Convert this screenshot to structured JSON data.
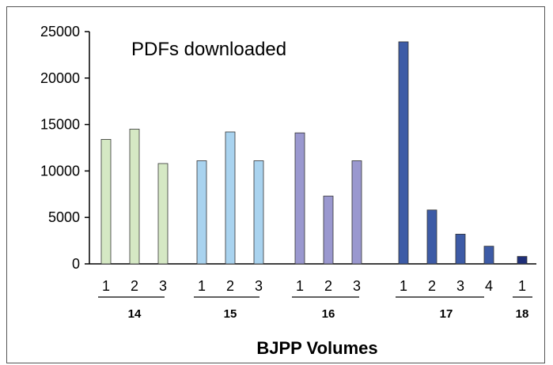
{
  "chart_data": {
    "type": "bar",
    "title": "PDFs downloaded",
    "xlabel": "BJPP Volumes",
    "ylabel": "",
    "ylim": [
      0,
      25000
    ],
    "y_ticks": [
      "0",
      "5000",
      "10000",
      "15000",
      "20000",
      "25000"
    ],
    "grid": false,
    "legend": "none",
    "groups": [
      {
        "volume": "14",
        "color": "#d5e8c4",
        "issues": [
          "1",
          "2",
          "3"
        ],
        "values": [
          13400,
          14500,
          10800
        ]
      },
      {
        "volume": "15",
        "color": "#a9d3ef",
        "issues": [
          "1",
          "2",
          "3"
        ],
        "values": [
          11100,
          14200,
          11100
        ]
      },
      {
        "volume": "16",
        "color": "#9a98cf",
        "issues": [
          "1",
          "2",
          "3"
        ],
        "values": [
          14100,
          7300,
          11100
        ]
      },
      {
        "volume": "17",
        "color": "#3d5ba6",
        "issues": [
          "1",
          "2",
          "3",
          "4"
        ],
        "values": [
          23900,
          5800,
          3200,
          1900
        ]
      },
      {
        "volume": "18",
        "color": "#1f2f78",
        "issues": [
          "1"
        ],
        "values": [
          800
        ]
      }
    ]
  }
}
